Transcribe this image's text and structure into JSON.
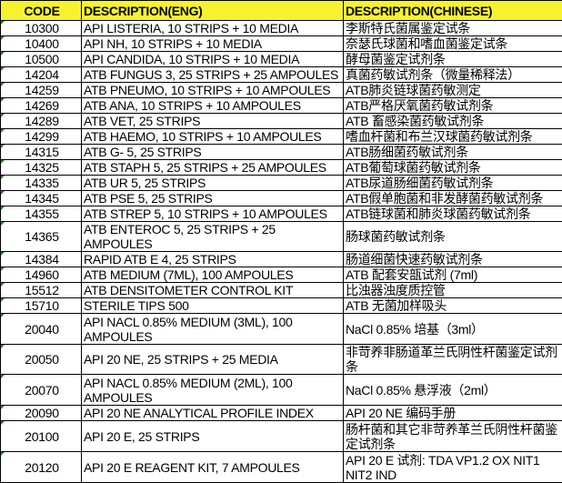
{
  "headers": {
    "code": "CODE",
    "eng": "DESCRIPTION(ENG)",
    "chn": "DESCRIPTION(CHINESE)"
  },
  "header_color": "#f7f22e",
  "rows": [
    {
      "code": "10300",
      "eng": "API LISTERIA, 10 STRIPS + 10 MEDIA",
      "chn": "李斯特氏菌属鉴定试条"
    },
    {
      "code": "10400",
      "eng": "API NH, 10 STRIPS + 10 MEDIA",
      "chn": "奈瑟氏球菌和嗜血菌鉴定试条"
    },
    {
      "code": "10500",
      "eng": "API CANDIDA, 10 STRIPS + 10 MEDIA",
      "chn": "酵母菌鉴定试剂条"
    },
    {
      "code": "14204",
      "eng": "ATB FUNGUS 3, 25 STRIPS + 25 AMPOULES",
      "chn": "真菌药敏试剂条（微量稀释法）"
    },
    {
      "code": "14259",
      "eng": "ATB PNEUMO, 10 STRIPS + 10 AMPOULES",
      "chn": "ATB肺炎链球菌药敏测定"
    },
    {
      "code": "14269",
      "eng": "ATB ANA, 10 STRIPS + 10 AMPOULES",
      "chn": "ATB严格厌氧菌药敏试剂条"
    },
    {
      "code": "14289",
      "eng": "ATB VET, 25 STRIPS",
      "chn": "ATB 畜感染菌药敏试剂条"
    },
    {
      "code": "14299",
      "eng": "ATB HAEMO, 10 STRIPS + 10 AMPOULES",
      "chn": "嗜血杆菌和布兰汉球菌药敏试剂条"
    },
    {
      "code": "14315",
      "eng": "ATB G- 5, 25 STRIPS",
      "chn": "ATB肠细菌药敏试剂条"
    },
    {
      "code": "14325",
      "eng": "ATB STAPH 5, 25 STRIPS + 25 AMPOULES",
      "chn": "ATB葡萄球菌药敏试剂条"
    },
    {
      "code": "14335",
      "eng": "ATB UR 5, 25 STRIPS",
      "chn": "ATB尿道肠细菌药敏试剂条"
    },
    {
      "code": "14345",
      "eng": "ATB PSE 5, 25 STRIPS",
      "chn": "ATB假单胞菌和非发酵菌药敏试剂条"
    },
    {
      "code": "14355",
      "eng": "ATB STREP 5, 10 STRIPS + 10 AMPOULES",
      "chn": "ATB链球菌和肺炎球菌药敏试剂条"
    },
    {
      "code": "14365",
      "eng": "ATB ENTEROC 5, 25 STRIPS + 25 AMPOULES",
      "chn": "肠球菌药敏试剂条"
    },
    {
      "code": "14384",
      "eng": "RAPID ATB E 4, 25 STRIPS",
      "chn": "肠道细菌快速药敏试剂条"
    },
    {
      "code": "14960",
      "eng": "ATB MEDIUM (7ML), 100 AMPOULES",
      "chn": "ATB 配套安瓿试剂 (7ml)"
    },
    {
      "code": "15512",
      "eng": "ATB DENSITOMETER CONTROL KIT",
      "chn": "比浊器浊度质控管"
    },
    {
      "code": "15710",
      "eng": "STERILE TIPS 500",
      "chn": "ATB 无菌加样吸头"
    },
    {
      "code": "20040",
      "eng": "API NACL 0.85% MEDIUM (3ML), 100 AMPOULES",
      "chn": "NaCl 0.85% 培基（3ml）"
    },
    {
      "code": "20050",
      "eng": "API 20 NE, 25 STRIPS + 25 MEDIA",
      "chn": "非苛养非肠道革兰氏阴性杆菌鉴定试剂条"
    },
    {
      "code": "20070",
      "eng": "API NACL 0.85% MEDIUM (2ML), 100 AMPOULES",
      "chn": "NaCl 0.85% 悬浮液（2ml）"
    },
    {
      "code": "20090",
      "eng": "API 20 NE ANALYTICAL PROFILE INDEX",
      "chn": "API 20 NE 编码手册"
    },
    {
      "code": "20100",
      "eng": "API 20 E, 25 STRIPS",
      "chn": "肠杆菌和其它非苛养革兰氏阴性杆菌鉴定试剂条"
    },
    {
      "code": "20120",
      "eng": "API 20 E REAGENT KIT, 7 AMPOULES",
      "chn": "API 20 E 试剂: TDA VP1.2 OX NIT1 NIT2 IND"
    }
  ]
}
